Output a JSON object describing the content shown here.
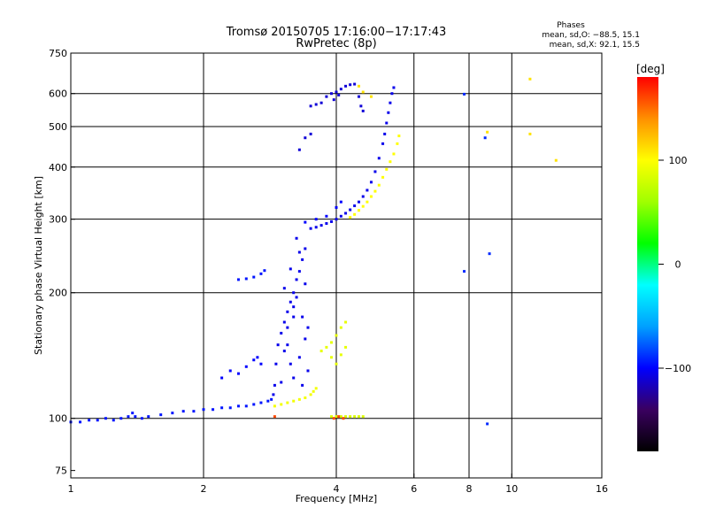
{
  "chart_data": {
    "type": "scatter",
    "title": "Tromsø 20150705 17:16:00−17:17:43",
    "subtitle": "RwPretec (8p)",
    "xlabel": "Frequency [MHz]",
    "ylabel": "Stationary phase Virtual Height [km]",
    "x_scale": "log2",
    "y_scale": "log",
    "xlim": [
      1,
      16
    ],
    "ylim": [
      72,
      750
    ],
    "x_ticks": [
      1,
      2,
      4,
      6,
      8,
      10,
      16
    ],
    "x_tick_labels": [
      "1",
      "2",
      "4",
      "6",
      "8",
      "10",
      "16"
    ],
    "x_grid": [
      2,
      4,
      6,
      8,
      10
    ],
    "y_ticks": [
      75,
      100,
      200,
      300,
      400,
      500,
      600,
      750
    ],
    "y_tick_labels": [
      "75",
      "100",
      "200",
      "300",
      "400",
      "500",
      "600",
      "750"
    ],
    "y_grid": [
      100,
      200,
      300,
      400,
      500,
      600
    ],
    "grid": true,
    "phase_box": {
      "title": "Phases",
      "line1": "mean, sd,O: −88.5, 15.1",
      "line2": "mean, sd,X:  92.1, 15.5"
    },
    "colorbar": {
      "label": "[deg]",
      "range": [
        -180,
        180
      ],
      "ticks": [
        100,
        0,
        -100
      ],
      "tick_labels": [
        "100",
        "0",
        "−100"
      ],
      "colors": [
        "#000000",
        "#3a0060",
        "#0000ff",
        "#00a0ff",
        "#00ffff",
        "#00ff00",
        "#a0ff00",
        "#ffff00",
        "#ff9000",
        "#ff0000"
      ]
    },
    "series": [
      {
        "phase": -95,
        "points": [
          [
            1.0,
            98
          ],
          [
            1.05,
            98
          ],
          [
            1.1,
            99
          ],
          [
            1.15,
            99
          ],
          [
            1.2,
            100
          ],
          [
            1.25,
            99
          ],
          [
            1.3,
            100
          ],
          [
            1.35,
            101
          ],
          [
            1.38,
            103
          ],
          [
            1.4,
            101
          ],
          [
            1.45,
            100
          ],
          [
            1.5,
            101
          ],
          [
            1.6,
            102
          ],
          [
            1.7,
            103
          ],
          [
            1.8,
            104
          ],
          [
            1.9,
            104
          ],
          [
            2.0,
            105
          ],
          [
            2.1,
            105
          ],
          [
            2.2,
            106
          ],
          [
            2.3,
            106
          ],
          [
            2.4,
            107
          ],
          [
            2.5,
            107
          ],
          [
            2.6,
            108
          ],
          [
            2.7,
            109
          ],
          [
            2.8,
            110
          ],
          [
            2.85,
            111
          ]
        ]
      },
      {
        "phase": -105,
        "points": [
          [
            2.88,
            114
          ],
          [
            2.9,
            120
          ],
          [
            2.92,
            135
          ],
          [
            2.95,
            150
          ],
          [
            3.0,
            160
          ],
          [
            3.05,
            170
          ],
          [
            3.1,
            180
          ],
          [
            3.15,
            190
          ],
          [
            3.2,
            200
          ],
          [
            3.25,
            215
          ],
          [
            3.3,
            225
          ],
          [
            3.35,
            240
          ],
          [
            3.4,
            255
          ],
          [
            3.25,
            270
          ],
          [
            3.2,
            185
          ],
          [
            3.35,
            175
          ],
          [
            3.1,
            165
          ],
          [
            3.4,
            155
          ],
          [
            3.05,
            145
          ],
          [
            3.3,
            140
          ],
          [
            3.15,
            135
          ],
          [
            3.45,
            130
          ],
          [
            3.2,
            125
          ],
          [
            3.0,
            122
          ],
          [
            3.35,
            120
          ],
          [
            3.25,
            195
          ],
          [
            3.05,
            205
          ],
          [
            3.4,
            210
          ],
          [
            3.15,
            228
          ],
          [
            3.3,
            250
          ],
          [
            3.1,
            150
          ],
          [
            3.45,
            165
          ],
          [
            3.2,
            175
          ]
        ]
      },
      {
        "phase": -95,
        "points": [
          [
            2.4,
            215
          ],
          [
            2.5,
            216
          ],
          [
            2.6,
            218
          ],
          [
            2.7,
            222
          ],
          [
            2.75,
            226
          ]
        ]
      },
      {
        "phase": -100,
        "points": [
          [
            2.2,
            125
          ],
          [
            2.3,
            130
          ],
          [
            2.4,
            128
          ],
          [
            2.5,
            133
          ],
          [
            2.6,
            138
          ],
          [
            2.65,
            140
          ],
          [
            2.7,
            135
          ]
        ]
      },
      {
        "phase": -105,
        "points": [
          [
            3.5,
            285
          ],
          [
            3.6,
            287
          ],
          [
            3.7,
            290
          ],
          [
            3.8,
            293
          ],
          [
            3.9,
            296
          ],
          [
            4.0,
            300
          ],
          [
            4.1,
            305
          ],
          [
            4.2,
            310
          ],
          [
            4.3,
            316
          ],
          [
            4.4,
            323
          ],
          [
            4.5,
            330
          ],
          [
            4.6,
            340
          ],
          [
            4.7,
            352
          ],
          [
            4.8,
            368
          ],
          [
            4.9,
            390
          ],
          [
            5.0,
            420
          ],
          [
            5.1,
            455
          ],
          [
            5.15,
            480
          ],
          [
            5.2,
            510
          ],
          [
            5.25,
            540
          ],
          [
            5.3,
            570
          ],
          [
            5.35,
            600
          ],
          [
            5.4,
            620
          ]
        ]
      },
      {
        "phase": -100,
        "points": [
          [
            3.4,
            295
          ],
          [
            3.6,
            300
          ],
          [
            3.8,
            305
          ],
          [
            4.0,
            320
          ],
          [
            4.1,
            330
          ]
        ]
      },
      {
        "phase": -110,
        "points": [
          [
            3.5,
            560
          ],
          [
            3.6,
            565
          ],
          [
            3.7,
            570
          ],
          [
            3.8,
            590
          ],
          [
            3.9,
            600
          ],
          [
            4.0,
            605
          ],
          [
            4.1,
            615
          ],
          [
            4.2,
            625
          ],
          [
            4.3,
            630
          ],
          [
            4.4,
            632
          ],
          [
            3.95,
            580
          ],
          [
            4.05,
            595
          ]
        ]
      },
      {
        "phase": -110,
        "points": [
          [
            3.3,
            440
          ],
          [
            3.4,
            470
          ],
          [
            3.5,
            480
          ],
          [
            4.5,
            590
          ],
          [
            4.55,
            560
          ],
          [
            4.6,
            545
          ]
        ]
      },
      {
        "phase": 95,
        "points": [
          [
            2.9,
            107
          ],
          [
            3.0,
            108
          ],
          [
            3.1,
            109
          ],
          [
            3.2,
            110
          ],
          [
            3.3,
            111
          ],
          [
            3.4,
            112
          ],
          [
            3.5,
            114
          ],
          [
            3.55,
            116
          ],
          [
            3.6,
            118
          ]
        ]
      },
      {
        "phase": 90,
        "points": [
          [
            3.7,
            145
          ],
          [
            3.8,
            148
          ],
          [
            3.9,
            152
          ],
          [
            4.0,
            158
          ],
          [
            4.1,
            165
          ],
          [
            4.2,
            170
          ],
          [
            3.9,
            140
          ],
          [
            4.0,
            135
          ],
          [
            4.1,
            142
          ],
          [
            4.2,
            148
          ]
        ]
      },
      {
        "phase": 100,
        "points": [
          [
            4.3,
            303
          ],
          [
            4.4,
            308
          ],
          [
            4.5,
            315
          ],
          [
            4.6,
            322
          ],
          [
            4.7,
            330
          ],
          [
            4.8,
            340
          ],
          [
            4.9,
            350
          ],
          [
            5.0,
            362
          ],
          [
            5.1,
            378
          ],
          [
            5.2,
            395
          ],
          [
            5.3,
            412
          ],
          [
            5.4,
            430
          ],
          [
            5.5,
            455
          ],
          [
            5.55,
            475
          ]
        ]
      },
      {
        "phase": 85,
        "points": [
          [
            3.9,
            101
          ],
          [
            4.0,
            101
          ],
          [
            4.1,
            101
          ],
          [
            4.2,
            101
          ],
          [
            4.3,
            101
          ],
          [
            4.4,
            101
          ],
          [
            4.5,
            101
          ],
          [
            4.6,
            101
          ]
        ]
      },
      {
        "phase": 160,
        "points": [
          [
            3.95,
            100
          ],
          [
            4.05,
            101
          ],
          [
            4.15,
            100
          ],
          [
            2.9,
            101
          ]
        ]
      },
      {
        "phase": 110,
        "points": [
          [
            4.5,
            625
          ],
          [
            4.6,
            605
          ],
          [
            4.8,
            590
          ],
          [
            8.8,
            485
          ],
          [
            11.0,
            480
          ],
          [
            12.6,
            415
          ],
          [
            11.0,
            650
          ]
        ]
      },
      {
        "phase": -90,
        "points": [
          [
            7.8,
            598
          ],
          [
            8.7,
            470
          ],
          [
            8.9,
            248
          ],
          [
            8.8,
            97
          ],
          [
            7.8,
            225
          ]
        ]
      }
    ]
  }
}
